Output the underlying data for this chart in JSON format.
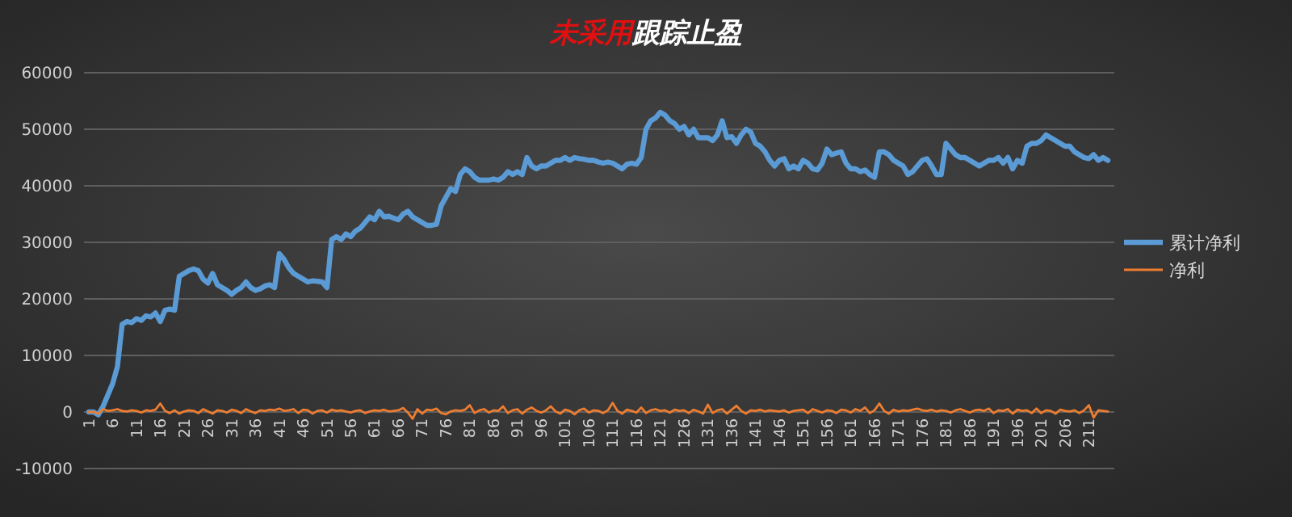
{
  "chart_data": {
    "type": "line",
    "title": "未采用跟踪止盈",
    "categories": [
      "1",
      null,
      null,
      null,
      null,
      "6",
      null,
      null,
      null,
      null,
      "11",
      null,
      null,
      null,
      null,
      "16",
      null,
      null,
      null,
      null,
      "21",
      null,
      null,
      null,
      null,
      "26",
      null,
      null,
      null,
      null,
      "31",
      null,
      null,
      null,
      null,
      "36",
      null,
      null,
      null,
      null,
      "41",
      null,
      null,
      null,
      null,
      "46",
      null,
      null,
      null,
      null,
      "51",
      null,
      null,
      null,
      null,
      "56",
      null,
      null,
      null,
      null,
      "61",
      null,
      null,
      null,
      null,
      "66",
      null,
      null,
      null,
      null,
      "71",
      null,
      null,
      null,
      null,
      "76",
      null,
      null,
      null,
      null,
      "81",
      null,
      null,
      null,
      null,
      "86",
      null,
      null,
      null,
      null,
      "91",
      null,
      null,
      null,
      null,
      "96",
      null,
      null,
      null,
      null,
      "101",
      null,
      null,
      null,
      null,
      "106",
      null,
      null,
      null,
      null,
      "111",
      null,
      null,
      null,
      null,
      "116",
      null,
      null,
      null,
      null,
      "121",
      null,
      null,
      null,
      null,
      "126",
      null,
      null,
      null,
      null,
      "131",
      null,
      null,
      null,
      null,
      "136",
      null,
      null,
      null,
      null,
      "141",
      null,
      null,
      null,
      null,
      "146",
      null,
      null,
      null,
      null,
      "151",
      null,
      null,
      null,
      null,
      "156",
      null,
      null,
      null,
      null,
      "161",
      null,
      null,
      null,
      null,
      "166",
      null,
      null,
      null,
      null,
      "171",
      null,
      null,
      null,
      null,
      "176",
      null,
      null,
      null,
      null,
      "181",
      null,
      null,
      null,
      null,
      "186",
      null,
      null,
      null,
      null,
      "191",
      null,
      null,
      null,
      null,
      "196",
      null,
      null,
      null,
      null,
      "201",
      null,
      null,
      null,
      null,
      "206",
      null,
      null,
      null,
      null,
      "211",
      null,
      null,
      null,
      null
    ],
    "series": [
      {
        "name": "累计净利",
        "color": "#5b9bd5",
        "values": [
          0,
          0,
          -500,
          1000,
          3000,
          5000,
          8000,
          15500,
          16000,
          15800,
          16500,
          16200,
          17000,
          16800,
          17500,
          16000,
          18000,
          18200,
          18000,
          24000,
          24500,
          25000,
          25300,
          25000,
          23500,
          22800,
          24500,
          22500,
          22000,
          21500,
          20800,
          21500,
          22000,
          23000,
          22000,
          21500,
          21800,
          22300,
          22500,
          22000,
          28000,
          27000,
          25500,
          24500,
          24000,
          23500,
          23000,
          23200,
          23100,
          23000,
          22000,
          30500,
          31000,
          30500,
          31500,
          31000,
          32000,
          32500,
          33500,
          34500,
          34000,
          35500,
          34500,
          34600,
          34300,
          34000,
          35000,
          35500,
          34500,
          34000,
          33500,
          33000,
          33000,
          33200,
          36500,
          38000,
          39500,
          39000,
          42000,
          43000,
          42500,
          41500,
          41000,
          41000,
          41000,
          41200,
          41000,
          41500,
          42500,
          42000,
          42500,
          42000,
          45000,
          43500,
          43000,
          43500,
          43500,
          44000,
          44500,
          44500,
          45000,
          44500,
          45000,
          44800,
          44700,
          44500,
          44500,
          44200,
          44000,
          44200,
          44000,
          43500,
          43000,
          43800,
          44000,
          43800,
          45000,
          50000,
          51500,
          52000,
          53000,
          52500,
          51500,
          51000,
          50000,
          50500,
          49000,
          50000,
          48500,
          48500,
          48500,
          48000,
          49000,
          51500,
          48500,
          48700,
          47500,
          49000,
          50000,
          49500,
          47500,
          47000,
          46000,
          44500,
          43500,
          44500,
          44800,
          43000,
          43500,
          43000,
          44500,
          44000,
          43000,
          42800,
          44000,
          46500,
          45500,
          45800,
          46000,
          44000,
          43000,
          43000,
          42500,
          42800,
          42000,
          41500,
          46000,
          46000,
          45500,
          44500,
          44000,
          43500,
          42000,
          42500,
          43500,
          44500,
          44800,
          43500,
          42000,
          42000,
          47500,
          46500,
          45500,
          45000,
          45000,
          44500,
          44000,
          43500,
          44000,
          44500,
          44500,
          45000,
          44000,
          45000,
          43000,
          44500,
          44000,
          47000,
          47500,
          47500,
          48000,
          49000,
          48500,
          48000,
          47500,
          47000,
          47000,
          46000,
          45500,
          45000,
          44800,
          45500,
          44500,
          45000,
          44500
        ]
      },
      {
        "name": "净利",
        "color": "#ed7d31",
        "values": [
          0,
          0,
          -300,
          500,
          200,
          300,
          500,
          200,
          100,
          300,
          200,
          -100,
          300,
          200,
          400,
          1500,
          200,
          -200,
          300,
          -300,
          100,
          300,
          200,
          -200,
          500,
          100,
          -300,
          300,
          200,
          -100,
          400,
          200,
          -200,
          500,
          100,
          -200,
          300,
          200,
          400,
          300,
          600,
          200,
          300,
          500,
          -200,
          400,
          300,
          -300,
          200,
          300,
          -100,
          400,
          200,
          300,
          100,
          -100,
          200,
          300,
          -200,
          100,
          300,
          200,
          400,
          100,
          200,
          300,
          700,
          -100,
          -1200,
          500,
          -300,
          400,
          300,
          600,
          -200,
          -400,
          100,
          300,
          200,
          400,
          1200,
          -200,
          300,
          500,
          -100,
          300,
          200,
          1000,
          -200,
          300,
          500,
          -300,
          400,
          800,
          200,
          -100,
          300,
          1000,
          100,
          -300,
          400,
          200,
          -400,
          300,
          600,
          -100,
          300,
          200,
          -200,
          300,
          1600,
          200,
          -300,
          400,
          200,
          -100,
          800,
          -200,
          300,
          500,
          200,
          300,
          -100,
          400,
          200,
          300,
          -200,
          400,
          100,
          -300,
          1300,
          -200,
          300,
          500,
          -300,
          400,
          1100,
          200,
          -300,
          300,
          200,
          400,
          100,
          300,
          200,
          100,
          300,
          -100,
          200,
          300,
          400,
          -200,
          500,
          200,
          -100,
          300,
          200,
          -200,
          400,
          300,
          -100,
          500,
          200,
          800,
          -200,
          300,
          1500,
          200,
          -300,
          400,
          100,
          300,
          200,
          400,
          600,
          300,
          200,
          400,
          100,
          300,
          200,
          -100,
          300,
          500,
          200,
          -100,
          300,
          400,
          200,
          600,
          -200,
          300,
          200,
          500,
          -300,
          400,
          200,
          300,
          -200,
          600,
          -200,
          300,
          200,
          -300,
          400,
          200,
          100,
          300,
          -200,
          300,
          1200,
          -1000,
          300,
          200,
          100
        ]
      }
    ],
    "ylim": [
      -10000,
      60000
    ],
    "yticks": [
      -10000,
      0,
      10000,
      20000,
      30000,
      40000,
      50000,
      60000
    ],
    "grid": "y",
    "legend": "right",
    "marker": "none",
    "line_style": "solid"
  }
}
